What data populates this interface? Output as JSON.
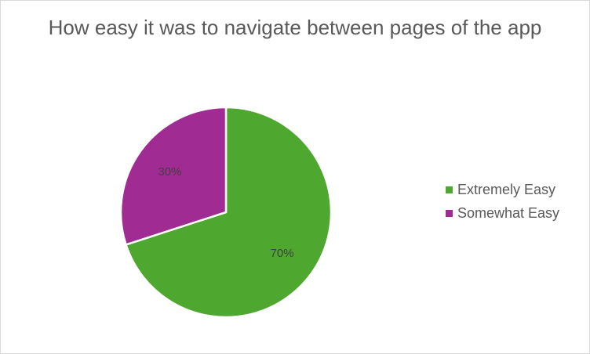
{
  "chart_data": {
    "type": "pie",
    "title": "How easy it was to navigate between pages of the app",
    "categories": [
      "Extremely Easy",
      "Somewhat Easy"
    ],
    "values": [
      70,
      30
    ],
    "data_labels": [
      "70%",
      "30%"
    ],
    "colors": [
      "#4ea72e",
      "#a02b93"
    ],
    "legend_position": "right"
  }
}
